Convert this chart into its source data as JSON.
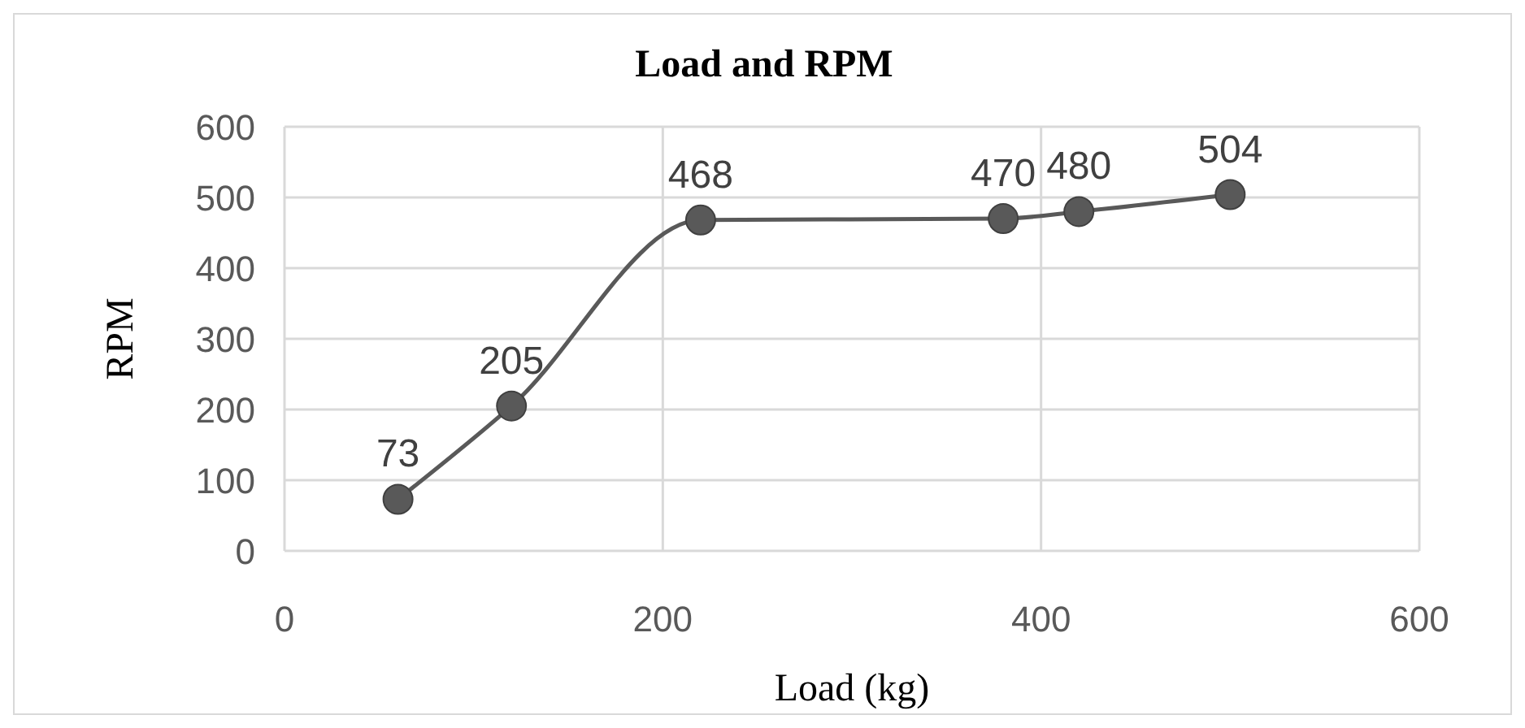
{
  "chart_data": {
    "type": "line",
    "title": "Load and RPM",
    "xlabel": "Load (kg)",
    "ylabel": "RPM",
    "x": [
      60,
      120,
      220,
      380,
      420,
      500
    ],
    "series": [
      {
        "color": "#595959",
        "values": [
          73,
          205,
          468,
          470,
          480,
          504
        ]
      }
    ],
    "xlim": [
      0,
      600
    ],
    "xticks": [
      0,
      200,
      400,
      600
    ],
    "ylim": [
      0,
      600
    ],
    "yticks": [
      0,
      100,
      200,
      300,
      400,
      500,
      600
    ],
    "grid": true,
    "marker": "circle",
    "data_labels": true,
    "legend": false
  }
}
